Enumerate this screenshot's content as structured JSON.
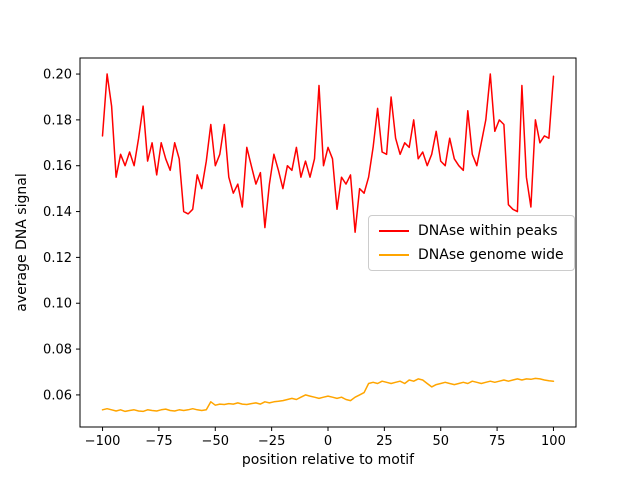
{
  "chart_data": {
    "type": "line",
    "title": "",
    "xlabel": "position relative to motif",
    "ylabel": "average DNA signal",
    "xlim": [
      -110,
      110
    ],
    "ylim": [
      0.046,
      0.207
    ],
    "grid": false,
    "legend_position": "center-right",
    "xticks": [
      -100,
      -75,
      -50,
      -25,
      0,
      25,
      50,
      75,
      100
    ],
    "xtick_labels": [
      "−100",
      "−75",
      "−50",
      "−25",
      "0",
      "25",
      "50",
      "75",
      "100"
    ],
    "yticks": [
      0.06,
      0.08,
      0.1,
      0.12,
      0.14,
      0.16,
      0.18,
      0.2
    ],
    "ytick_labels": [
      "0.06",
      "0.08",
      "0.10",
      "0.12",
      "0.14",
      "0.16",
      "0.18",
      "0.20"
    ],
    "x": [
      -100,
      -98,
      -96,
      -94,
      -92,
      -90,
      -88,
      -86,
      -84,
      -82,
      -80,
      -78,
      -76,
      -74,
      -72,
      -70,
      -68,
      -66,
      -64,
      -62,
      -60,
      -58,
      -56,
      -54,
      -52,
      -50,
      -48,
      -46,
      -44,
      -42,
      -40,
      -38,
      -36,
      -34,
      -32,
      -30,
      -28,
      -26,
      -24,
      -22,
      -20,
      -18,
      -16,
      -14,
      -12,
      -10,
      -8,
      -6,
      -4,
      -2,
      0,
      2,
      4,
      6,
      8,
      10,
      12,
      14,
      16,
      18,
      20,
      22,
      24,
      26,
      28,
      30,
      32,
      34,
      36,
      38,
      40,
      42,
      44,
      46,
      48,
      50,
      52,
      54,
      56,
      58,
      60,
      62,
      64,
      66,
      68,
      70,
      72,
      74,
      76,
      78,
      80,
      82,
      84,
      86,
      88,
      90,
      92,
      94,
      96,
      98,
      100
    ],
    "series": [
      {
        "name": "DNAse within peaks",
        "color": "#ff0000",
        "values": [
          0.173,
          0.2,
          0.186,
          0.155,
          0.165,
          0.16,
          0.166,
          0.16,
          0.172,
          0.186,
          0.162,
          0.17,
          0.156,
          0.17,
          0.163,
          0.158,
          0.17,
          0.163,
          0.14,
          0.139,
          0.141,
          0.156,
          0.15,
          0.162,
          0.178,
          0.16,
          0.165,
          0.178,
          0.155,
          0.148,
          0.152,
          0.142,
          0.168,
          0.16,
          0.152,
          0.157,
          0.133,
          0.152,
          0.165,
          0.158,
          0.15,
          0.16,
          0.158,
          0.168,
          0.155,
          0.162,
          0.155,
          0.163,
          0.195,
          0.16,
          0.168,
          0.163,
          0.141,
          0.155,
          0.152,
          0.156,
          0.131,
          0.15,
          0.148,
          0.155,
          0.168,
          0.185,
          0.166,
          0.165,
          0.19,
          0.172,
          0.165,
          0.17,
          0.168,
          0.18,
          0.163,
          0.166,
          0.16,
          0.165,
          0.175,
          0.162,
          0.16,
          0.172,
          0.163,
          0.16,
          0.158,
          0.184,
          0.165,
          0.16,
          0.17,
          0.18,
          0.2,
          0.175,
          0.18,
          0.178,
          0.143,
          0.141,
          0.14,
          0.195,
          0.155,
          0.142,
          0.18,
          0.17,
          0.173,
          0.172,
          0.199
        ]
      },
      {
        "name": "DNAse genome wide",
        "color": "#ffa500",
        "values": [
          0.0535,
          0.054,
          0.0535,
          0.053,
          0.0535,
          0.0528,
          0.0532,
          0.0535,
          0.053,
          0.0528,
          0.0535,
          0.0532,
          0.053,
          0.0535,
          0.0538,
          0.0532,
          0.053,
          0.0535,
          0.0532,
          0.0535,
          0.054,
          0.0535,
          0.0532,
          0.0535,
          0.057,
          0.0555,
          0.056,
          0.0558,
          0.0562,
          0.056,
          0.0565,
          0.056,
          0.0558,
          0.0562,
          0.0565,
          0.056,
          0.057,
          0.0565,
          0.057,
          0.0572,
          0.0575,
          0.058,
          0.0585,
          0.058,
          0.059,
          0.06,
          0.0595,
          0.059,
          0.0585,
          0.059,
          0.0595,
          0.059,
          0.0585,
          0.059,
          0.058,
          0.0575,
          0.059,
          0.06,
          0.061,
          0.065,
          0.0655,
          0.065,
          0.066,
          0.0655,
          0.065,
          0.0655,
          0.066,
          0.065,
          0.0665,
          0.066,
          0.067,
          0.0665,
          0.065,
          0.0635,
          0.0645,
          0.065,
          0.0655,
          0.065,
          0.0645,
          0.065,
          0.0655,
          0.065,
          0.066,
          0.0655,
          0.065,
          0.0655,
          0.066,
          0.0655,
          0.066,
          0.0665,
          0.066,
          0.0665,
          0.067,
          0.0665,
          0.067,
          0.0668,
          0.0672,
          0.067,
          0.0665,
          0.0662,
          0.066
        ]
      }
    ]
  }
}
